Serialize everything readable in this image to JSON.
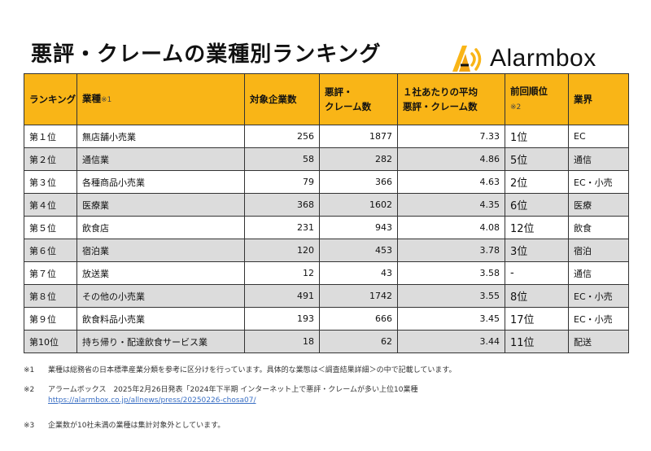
{
  "title": "悪評・クレームの業種別ランキング",
  "brand": {
    "name": "Alarmbox",
    "accent": "#F9B517",
    "icon": "alarm-logo-icon"
  },
  "table": {
    "headers": {
      "rank": "ランキング",
      "industry": "業種",
      "industry_note": "※1",
      "companies": "対象企業数",
      "complaints_l1": "悪評・",
      "complaints_l2": "クレーム数",
      "avg_l1": "１社あたりの平均",
      "avg_l2": "悪評・クレーム数",
      "prev_rank": "前回順位",
      "prev_rank_note": "※2",
      "sector": "業界"
    },
    "rows": [
      {
        "rank": "第１位",
        "industry": "無店舗小売業",
        "companies": "256",
        "complaints": "1877",
        "avg": "7.33",
        "prev": "1位",
        "sector": "EC"
      },
      {
        "rank": "第２位",
        "industry": "通信業",
        "companies": "58",
        "complaints": "282",
        "avg": "4.86",
        "prev": "5位",
        "sector": "通信"
      },
      {
        "rank": "第３位",
        "industry": "各種商品小売業",
        "companies": "79",
        "complaints": "366",
        "avg": "4.63",
        "prev": "2位",
        "sector": "EC・小売"
      },
      {
        "rank": "第４位",
        "industry": "医療業",
        "companies": "368",
        "complaints": "1602",
        "avg": "4.35",
        "prev": "6位",
        "sector": "医療"
      },
      {
        "rank": "第５位",
        "industry": "飲食店",
        "companies": "231",
        "complaints": "943",
        "avg": "4.08",
        "prev": "12位",
        "sector": "飲食"
      },
      {
        "rank": "第６位",
        "industry": "宿泊業",
        "companies": "120",
        "complaints": "453",
        "avg": "3.78",
        "prev": "3位",
        "sector": "宿泊"
      },
      {
        "rank": "第７位",
        "industry": "放送業",
        "companies": "12",
        "complaints": "43",
        "avg": "3.58",
        "prev": "-",
        "sector": "通信"
      },
      {
        "rank": "第８位",
        "industry": "その他の小売業",
        "companies": "491",
        "complaints": "1742",
        "avg": "3.55",
        "prev": "8位",
        "sector": "EC・小売"
      },
      {
        "rank": "第９位",
        "industry": "飲食料品小売業",
        "companies": "193",
        "complaints": "666",
        "avg": "3.45",
        "prev": "17位",
        "sector": "EC・小売"
      },
      {
        "rank": "第10位",
        "industry": "持ち帰り・配達飲食サービス業",
        "companies": "18",
        "complaints": "62",
        "avg": "3.44",
        "prev": "11位",
        "sector": "配送"
      }
    ]
  },
  "footnotes": {
    "n1_mark": "※1",
    "n1_text": "業種は総務省の日本標準産業分類を参考に区分けを行っています。具体的な業態は＜調査結果詳細＞の中で記載しています。",
    "n2_mark": "※2",
    "n2_text": "アラームボックス　2025年2月26日発表「2024年下半期 インターネット上で悪評・クレームが多い上位10業種",
    "n2_link": "https://alarmbox.co.jp/allnews/press/20250226-chosa07/",
    "n3_mark": "※3",
    "n3_text": "企業数が10社未満の業種は集計対象外としています。"
  }
}
